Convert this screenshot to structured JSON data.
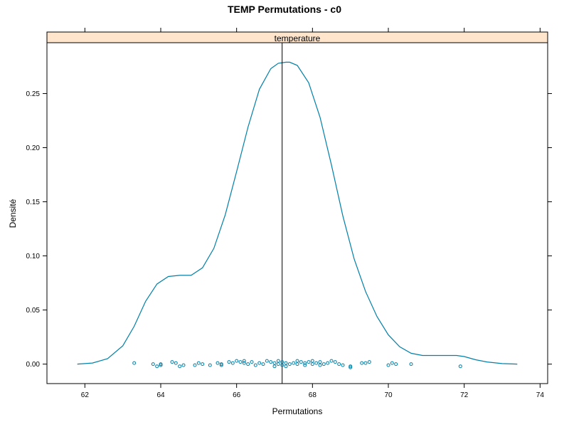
{
  "chart_data": {
    "type": "line",
    "title": "TEMP Permutations - c0",
    "panel_label": "temperature",
    "xlabel": "Permutations",
    "ylabel": "Densité",
    "xlim": [
      61.0,
      74.2
    ],
    "ylim": [
      -0.018,
      0.297
    ],
    "x_ticks": [
      62,
      64,
      66,
      68,
      70,
      72,
      74
    ],
    "y_ticks": [
      0.0,
      0.05,
      0.1,
      0.15,
      0.2,
      0.25
    ],
    "x_tick_labels": [
      "62",
      "64",
      "66",
      "68",
      "70",
      "72",
      "74"
    ],
    "y_tick_labels": [
      "0.00",
      "0.05",
      "0.10",
      "0.15",
      "0.20",
      "0.25"
    ],
    "reference_line_x": 67.2,
    "grid": false,
    "colors": {
      "density": "#0080a8",
      "points": "#0080a8",
      "reference": "#000000"
    },
    "series": [
      {
        "kind": "density",
        "x": [
          61.8,
          62.2,
          62.6,
          63.0,
          63.3,
          63.6,
          63.9,
          64.2,
          64.5,
          64.8,
          65.1,
          65.4,
          65.7,
          66.0,
          66.3,
          66.6,
          66.9,
          67.1,
          67.3,
          67.4,
          67.6,
          67.9,
          68.2,
          68.5,
          68.8,
          69.1,
          69.4,
          69.7,
          70.0,
          70.3,
          70.6,
          70.9,
          71.2,
          71.5,
          71.8,
          72.0,
          72.3,
          72.6,
          73.0,
          73.4
        ],
        "y": [
          0.0,
          0.001,
          0.005,
          0.017,
          0.035,
          0.058,
          0.074,
          0.081,
          0.082,
          0.082,
          0.089,
          0.107,
          0.138,
          0.178,
          0.219,
          0.254,
          0.273,
          0.278,
          0.279,
          0.279,
          0.276,
          0.26,
          0.228,
          0.184,
          0.137,
          0.097,
          0.067,
          0.044,
          0.027,
          0.016,
          0.01,
          0.008,
          0.008,
          0.008,
          0.008,
          0.007,
          0.004,
          0.002,
          0.0005,
          0.0
        ]
      },
      {
        "kind": "rug-points",
        "x": [
          63.3,
          63.8,
          63.9,
          64.0,
          64.0,
          64.3,
          64.4,
          64.5,
          64.6,
          64.9,
          65.0,
          65.1,
          65.3,
          65.5,
          65.6,
          65.6,
          65.8,
          65.9,
          66.0,
          66.1,
          66.2,
          66.2,
          66.3,
          66.4,
          66.5,
          66.6,
          66.7,
          66.8,
          66.9,
          67.0,
          67.0,
          67.1,
          67.1,
          67.2,
          67.2,
          67.3,
          67.3,
          67.4,
          67.5,
          67.6,
          67.6,
          67.7,
          67.8,
          67.8,
          67.9,
          68.0,
          68.0,
          68.1,
          68.2,
          68.2,
          68.3,
          68.4,
          68.5,
          68.6,
          68.7,
          68.8,
          69.0,
          69.0,
          69.3,
          69.4,
          69.5,
          70.0,
          70.1,
          70.2,
          70.6,
          71.9
        ],
        "y": [
          0.001,
          0.0,
          -0.002,
          -0.001,
          0.0,
          0.002,
          0.001,
          -0.002,
          -0.001,
          -0.001,
          0.001,
          0.0,
          -0.001,
          0.001,
          0.0,
          -0.001,
          0.002,
          0.001,
          0.003,
          0.002,
          0.001,
          0.003,
          0.0,
          0.002,
          -0.001,
          0.001,
          0.0,
          0.003,
          0.002,
          -0.002,
          0.001,
          0.003,
          0.0,
          -0.001,
          0.002,
          0.001,
          -0.002,
          0.0,
          0.001,
          0.003,
          0.0,
          0.002,
          -0.001,
          0.001,
          0.002,
          0.0,
          0.003,
          0.001,
          -0.001,
          0.002,
          0.0,
          0.001,
          0.003,
          0.002,
          0.0,
          -0.001,
          -0.002,
          -0.003,
          0.001,
          0.001,
          0.002,
          -0.001,
          0.001,
          0.0,
          0.0,
          -0.002
        ]
      }
    ]
  }
}
